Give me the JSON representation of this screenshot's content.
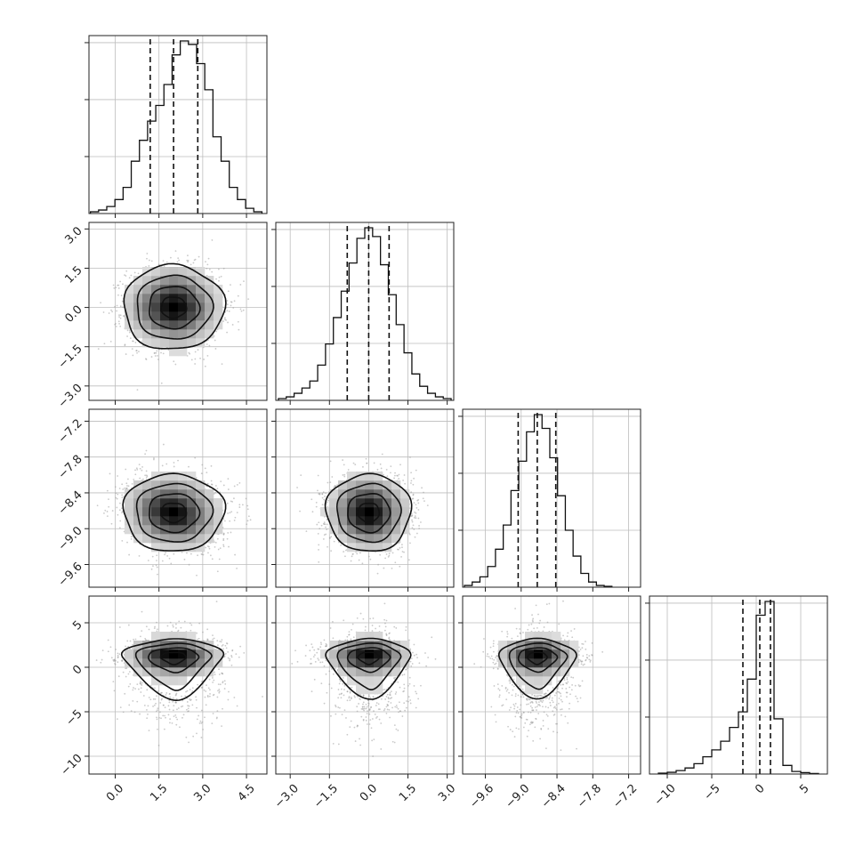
{
  "chart_data": {
    "type": "corner",
    "title": "",
    "n_params": 4,
    "colors": {
      "line": "#111111",
      "points": "#9e9e9e",
      "grid": "#bdbdbd",
      "density_dark": "#000000",
      "density_light": "#f2f2f2"
    },
    "grid": true,
    "params": [
      {
        "label": "",
        "lim": [
          -0.9,
          5.2
        ],
        "ticks": [
          0.0,
          1.5,
          3.0,
          4.5
        ],
        "tick_labels": [
          "0.0",
          "1.5",
          "3.0",
          "4.5"
        ],
        "mean": 2.0,
        "sd": 0.8,
        "quantiles": [
          1.2,
          2.0,
          2.83
        ]
      },
      {
        "label": "",
        "lim": [
          -3.55,
          3.25
        ],
        "ticks": [
          -3.0,
          -1.5,
          0.0,
          1.5,
          3.0
        ],
        "tick_labels": [
          "−3.0",
          "−1.5",
          "0.0",
          "1.5",
          "3.0"
        ],
        "mean": 0.0,
        "sd": 0.75,
        "quantiles": [
          -0.82,
          0.0,
          0.78
        ]
      },
      {
        "label": "",
        "lim": [
          -9.98,
          -7.0
        ],
        "ticks": [
          -9.6,
          -9.0,
          -8.4,
          -7.8,
          -7.2
        ],
        "tick_labels": [
          "−9.6",
          "−9.0",
          "−8.4",
          "−7.8",
          "−7.2"
        ],
        "mean": -8.73,
        "sd": 0.3,
        "quantiles": [
          -9.05,
          -8.73,
          -8.42
        ]
      },
      {
        "label": "",
        "lim": [
          -12.0,
          8.0
        ],
        "ticks": [
          -10,
          -5,
          0,
          5
        ],
        "tick_labels": [
          "−10",
          "−5",
          "0",
          "5"
        ],
        "mean": 0.4,
        "sd": 2.2,
        "quantiles": [
          -1.5,
          0.4,
          1.6
        ]
      }
    ],
    "histograms": [
      {
        "param": 0,
        "bins": [
          -0.85,
          -0.57,
          -0.29,
          -0.01,
          0.27,
          0.55,
          0.83,
          1.11,
          1.39,
          1.67,
          1.95,
          2.23,
          2.51,
          2.79,
          3.07,
          3.35,
          3.63,
          3.91,
          4.19,
          4.47,
          4.75,
          5.03
        ],
        "counts": [
          0.01,
          0.02,
          0.04,
          0.08,
          0.15,
          0.3,
          0.42,
          0.53,
          0.62,
          0.74,
          0.91,
          0.99,
          0.97,
          0.86,
          0.71,
          0.44,
          0.3,
          0.15,
          0.08,
          0.03,
          0.01
        ]
      },
      {
        "param": 1,
        "bins": [
          -3.45,
          -3.15,
          -2.85,
          -2.55,
          -2.25,
          -1.95,
          -1.65,
          -1.35,
          -1.05,
          -0.75,
          -0.45,
          -0.15,
          0.15,
          0.45,
          0.75,
          1.05,
          1.35,
          1.65,
          1.95,
          2.25,
          2.55,
          2.85,
          3.15
        ],
        "counts": [
          0.01,
          0.02,
          0.04,
          0.07,
          0.11,
          0.2,
          0.32,
          0.47,
          0.62,
          0.78,
          0.92,
          0.98,
          0.93,
          0.77,
          0.6,
          0.43,
          0.27,
          0.15,
          0.08,
          0.04,
          0.02,
          0.01
        ]
      },
      {
        "param": 2,
        "bins": [
          -9.95,
          -9.82,
          -9.69,
          -9.56,
          -9.43,
          -9.3,
          -9.17,
          -9.04,
          -8.91,
          -8.78,
          -8.65,
          -8.52,
          -8.39,
          -8.26,
          -8.13,
          -8.0,
          -7.87,
          -7.74,
          -7.61,
          -7.48
        ],
        "counts": [
          0.01,
          0.03,
          0.06,
          0.12,
          0.22,
          0.36,
          0.56,
          0.73,
          0.9,
          1.0,
          0.92,
          0.75,
          0.53,
          0.33,
          0.18,
          0.08,
          0.03,
          0.01,
          0.005
        ]
      },
      {
        "param": 3,
        "bins": [
          -11.0,
          -10.0,
          -9.0,
          -8.0,
          -7.0,
          -6.0,
          -5.0,
          -4.0,
          -3.0,
          -2.0,
          -1.0,
          0.0,
          1.0,
          2.0,
          3.0,
          4.0,
          5.0,
          6.0,
          7.0
        ],
        "counts": [
          0.005,
          0.01,
          0.02,
          0.035,
          0.06,
          0.1,
          0.14,
          0.19,
          0.27,
          0.36,
          0.55,
          0.92,
          1.0,
          0.32,
          0.05,
          0.015,
          0.008,
          0.003
        ]
      }
    ],
    "pairs": [
      {
        "x_param": 0,
        "y_param": 1,
        "corr": 0.0,
        "skew_y": 0
      },
      {
        "x_param": 0,
        "y_param": 2,
        "corr": -0.1,
        "skew_y": 0
      },
      {
        "x_param": 1,
        "y_param": 2,
        "corr": 0.0,
        "skew_y": 0
      },
      {
        "x_param": 0,
        "y_param": 3,
        "corr": 0.0,
        "skew_y": -1
      },
      {
        "x_param": 1,
        "y_param": 3,
        "corr": 0.0,
        "skew_y": -1
      },
      {
        "x_param": 2,
        "y_param": 3,
        "corr": 0.0,
        "skew_y": -1
      }
    ],
    "contour_levels": [
      0.118,
      0.393,
      0.675,
      0.864
    ]
  }
}
